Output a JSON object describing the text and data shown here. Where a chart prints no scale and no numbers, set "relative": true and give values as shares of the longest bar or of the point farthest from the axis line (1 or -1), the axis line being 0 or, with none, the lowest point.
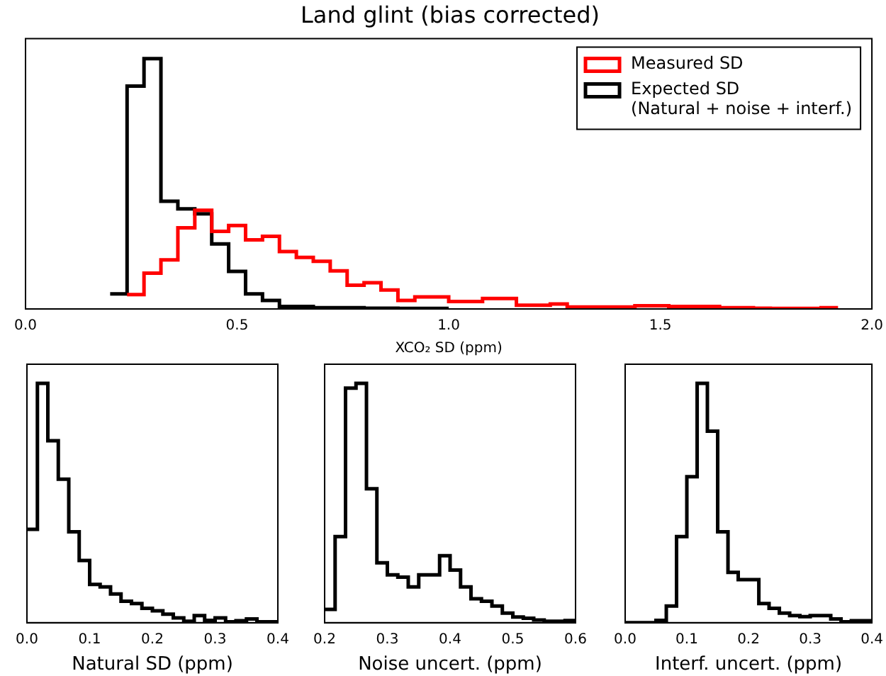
{
  "chart_data": [
    {
      "type": "step",
      "title": "Land glint (bias corrected)",
      "xlabel": "XCO₂ SD (ppm)",
      "relative": true,
      "legend": "top right",
      "xlim": [
        0,
        2
      ],
      "xticks": [
        {
          "value": 0,
          "label": "0.0"
        },
        {
          "value": 0.5,
          "label": "0.5"
        },
        {
          "value": 1,
          "label": "1.0"
        },
        {
          "value": 1.5,
          "label": "1.5"
        },
        {
          "value": 2,
          "label": "2.0"
        }
      ],
      "series": [
        {
          "name": "Measured SD",
          "color": "#ff0000",
          "x": [
            0.24,
            0.28,
            0.32,
            0.36,
            0.4,
            0.44,
            0.48,
            0.52,
            0.56,
            0.6,
            0.64,
            0.68,
            0.72,
            0.76,
            0.8,
            0.84,
            0.88,
            0.92,
            0.96,
            1.0,
            1.04,
            1.08,
            1.12,
            1.16,
            1.2,
            1.24,
            1.28,
            1.32,
            1.36,
            1.4,
            1.44,
            1.48,
            1.52,
            1.56,
            1.6,
            1.64,
            1.68,
            1.72,
            1.76,
            1.8,
            1.84,
            1.88,
            1.92
          ],
          "values": [
            0.057,
            0.143,
            0.196,
            0.324,
            0.394,
            0.31,
            0.333,
            0.276,
            0.29,
            0.229,
            0.206,
            0.19,
            0.152,
            0.095,
            0.105,
            0.076,
            0.034,
            0.048,
            0.048,
            0.03,
            0.03,
            0.042,
            0.042,
            0.015,
            0.015,
            0.02,
            0.008,
            0.008,
            0.008,
            0.008,
            0.013,
            0.013,
            0.01,
            0.01,
            0.01,
            0.005,
            0.005,
            0.003,
            0.002,
            0.002,
            0.002,
            0.005,
            0.005
          ]
        },
        {
          "name": "Expected SD\n(Natural + noise + interf.)",
          "color": "#000000",
          "x": [
            0.2,
            0.24,
            0.28,
            0.32,
            0.36,
            0.4,
            0.44,
            0.48,
            0.52,
            0.56,
            0.6,
            0.64,
            0.68,
            0.72,
            0.76,
            0.8,
            0.84,
            0.88,
            0.92,
            0.96,
            1.0
          ],
          "values": [
            0.06,
            0.89,
            1.0,
            0.43,
            0.4,
            0.38,
            0.26,
            0.15,
            0.06,
            0.034,
            0.01,
            0.01,
            0.005,
            0.005,
            0.005,
            0.003,
            0.003,
            0.002,
            0.002,
            0.002,
            0.002
          ]
        }
      ]
    },
    {
      "type": "step",
      "xlabel": "Natural SD (ppm)",
      "relative": true,
      "xlim": [
        0,
        0.4
      ],
      "color": "#000000",
      "xticks": [
        {
          "value": 0,
          "label": "0.0"
        },
        0.1,
        0.2,
        0.3,
        0.4
      ],
      "x": [
        0,
        0.0167,
        0.0333,
        0.05,
        0.0667,
        0.0833,
        0.1,
        0.1167,
        0.1333,
        0.15,
        0.1667,
        0.1833,
        0.2,
        0.2167,
        0.2333,
        0.25,
        0.2667,
        0.2833,
        0.3,
        0.3167,
        0.3333,
        0.35,
        0.3667,
        0.3833,
        0.4
      ],
      "values": [
        0.39,
        1.0,
        0.76,
        0.6,
        0.38,
        0.26,
        0.16,
        0.15,
        0.12,
        0.09,
        0.08,
        0.06,
        0.05,
        0.036,
        0.02,
        0.006,
        0.03,
        0.01,
        0.02,
        0.004,
        0.008,
        0.016,
        0.004,
        0.004,
        0.004
      ]
    },
    {
      "type": "step",
      "xlabel": "Noise uncert. (ppm)",
      "relative": true,
      "xlim": [
        0.2,
        0.6
      ],
      "color": "#000000",
      "xticks": [
        0.2,
        0.3,
        0.4,
        0.5,
        0.6
      ],
      "x": [
        0.2,
        0.2167,
        0.2333,
        0.25,
        0.2667,
        0.2833,
        0.3,
        0.3167,
        0.3333,
        0.35,
        0.3667,
        0.3833,
        0.4,
        0.4167,
        0.4333,
        0.45,
        0.4667,
        0.4833,
        0.5,
        0.5167,
        0.5333,
        0.55,
        0.5667,
        0.5833,
        0.6
      ],
      "values": [
        0.056,
        0.36,
        0.98,
        1.0,
        0.56,
        0.25,
        0.2,
        0.19,
        0.15,
        0.2,
        0.2,
        0.28,
        0.22,
        0.15,
        0.1,
        0.09,
        0.07,
        0.04,
        0.024,
        0.019,
        0.011,
        0.006,
        0.006,
        0.009,
        0.009
      ]
    },
    {
      "type": "step",
      "xlabel": "Interf. uncert. (ppm)",
      "relative": true,
      "xlim": [
        0,
        0.4
      ],
      "color": "#000000",
      "xticks": [
        {
          "value": 0,
          "label": "0.0"
        },
        0.1,
        0.2,
        0.3,
        0.4
      ],
      "x": [
        0,
        0.0167,
        0.0333,
        0.05,
        0.0667,
        0.0833,
        0.1,
        0.1167,
        0.1333,
        0.15,
        0.1667,
        0.1833,
        0.2,
        0.2167,
        0.2333,
        0.25,
        0.2667,
        0.2833,
        0.3,
        0.3167,
        0.3333,
        0.35,
        0.3667,
        0.3833,
        0.4
      ],
      "values": [
        0,
        0,
        0,
        0.01,
        0.07,
        0.36,
        0.61,
        1.0,
        0.8,
        0.38,
        0.21,
        0.18,
        0.18,
        0.08,
        0.06,
        0.04,
        0.03,
        0.025,
        0.03,
        0.03,
        0.016,
        0.004,
        0.008,
        0.008,
        0.008
      ]
    }
  ]
}
